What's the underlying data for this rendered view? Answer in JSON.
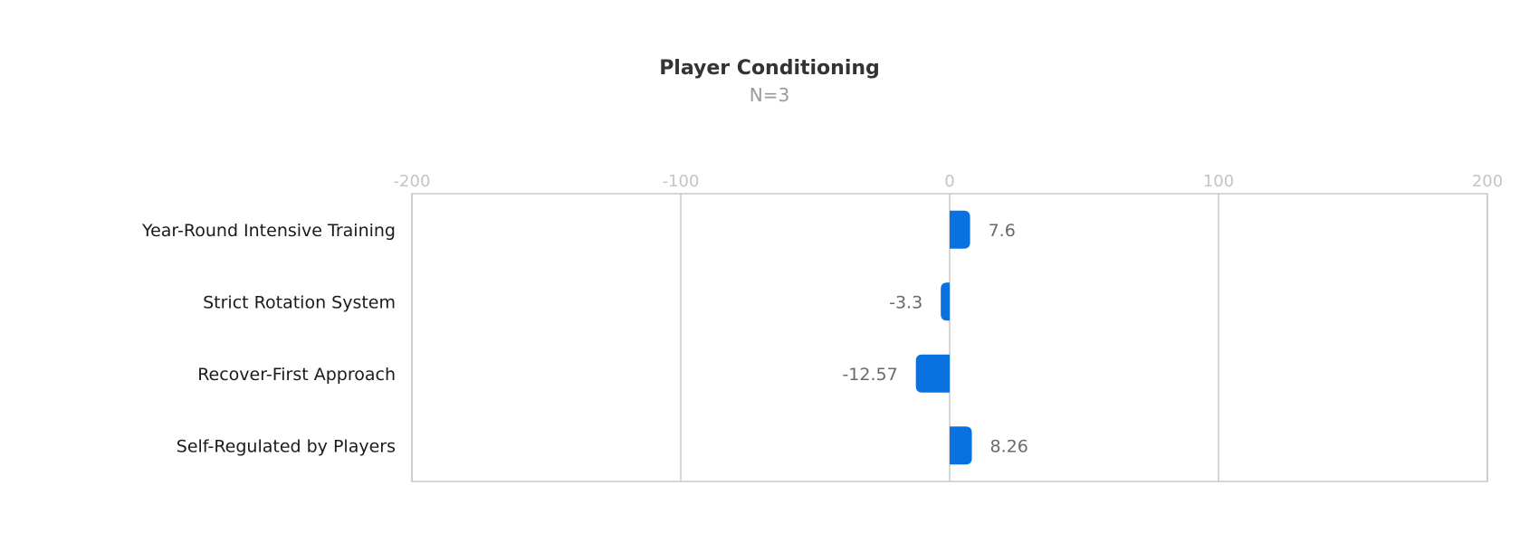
{
  "chart_data": {
    "type": "bar",
    "orientation": "horizontal",
    "title": "Player Conditioning",
    "subtitle": "N=3",
    "categories": [
      "Year-Round Intensive Training",
      "Strict Rotation System",
      "Recover-First Approach",
      "Self-Regulated by Players"
    ],
    "values": [
      7.6,
      -3.3,
      -12.57,
      8.26
    ],
    "value_labels": [
      "7.6",
      "-3.3",
      "-12.57",
      "8.26"
    ],
    "xlim": [
      -200,
      200
    ],
    "x_ticks": [
      -200,
      -100,
      0,
      100,
      200
    ],
    "x_tick_labels": [
      "-200",
      "-100",
      "0",
      "100",
      "200"
    ],
    "tick_position": "top",
    "grid": true,
    "legend": "none",
    "bar_color": "#0a72e0"
  }
}
